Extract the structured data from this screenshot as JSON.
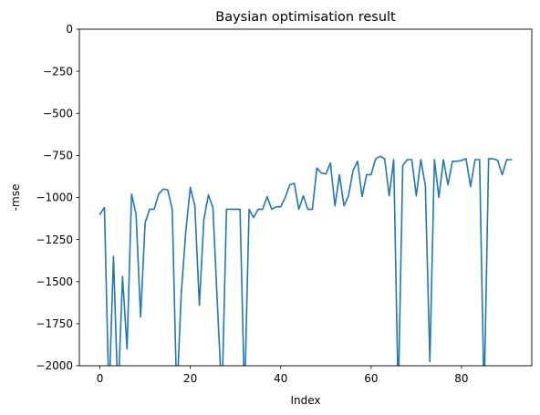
{
  "chart_data": {
    "type": "line",
    "title": "Baysian optimisation result",
    "xlabel": "Index",
    "ylabel": "-mse",
    "xlim": [
      -4.55,
      95.55
    ],
    "ylim": [
      -2000,
      0
    ],
    "xticks": [
      0,
      20,
      40,
      60,
      80
    ],
    "yticks": [
      0,
      -250,
      -500,
      -750,
      -1000,
      -1250,
      -1500,
      -1750,
      -2000
    ],
    "ytick_labels": [
      "0",
      "−250",
      "−500",
      "−750",
      "−1000",
      "−1250",
      "−1500",
      "−1750",
      "−2000"
    ],
    "grid": false,
    "line_color": "#1f77b4",
    "series": [
      {
        "x": [
          0,
          1,
          2,
          3,
          4,
          5,
          6,
          7,
          8,
          9,
          10,
          11,
          12,
          13,
          14,
          15,
          16,
          17,
          18,
          19,
          20,
          21,
          22,
          23,
          24,
          25,
          26,
          27,
          28,
          29,
          30,
          31,
          32,
          33,
          34,
          35,
          36,
          37,
          38,
          39,
          40,
          41,
          42,
          43,
          44,
          45,
          46,
          47,
          48,
          49,
          50,
          51,
          52,
          53,
          54,
          55,
          56,
          57,
          58,
          59,
          60,
          61,
          62,
          63,
          64,
          65,
          66,
          67,
          68,
          69,
          70,
          71,
          72,
          73,
          74,
          75,
          76,
          77,
          78,
          79,
          80,
          81,
          82,
          83,
          84,
          85,
          86,
          87,
          88,
          89,
          90,
          91
        ],
        "values": [
          -1100,
          -1060,
          -2200,
          -1350,
          -2200,
          -1470,
          -1900,
          -980,
          -1100,
          -1710,
          -1150,
          -1070,
          -1070,
          -980,
          -950,
          -955,
          -1070,
          -2200,
          -1570,
          -1200,
          -940,
          -1050,
          -1640,
          -1130,
          -985,
          -1060,
          -1640,
          -2200,
          -1070,
          -1070,
          -1070,
          -1070,
          -2200,
          -1070,
          -1120,
          -1070,
          -1070,
          -995,
          -1070,
          -1055,
          -1055,
          -1000,
          -925,
          -915,
          -1070,
          -990,
          -1070,
          -1070,
          -825,
          -855,
          -860,
          -795,
          -1050,
          -865,
          -1050,
          -990,
          -840,
          -785,
          -995,
          -865,
          -865,
          -770,
          -755,
          -770,
          -990,
          -775,
          -2200,
          -810,
          -775,
          -775,
          -990,
          -775,
          -930,
          -1975,
          -775,
          -1000,
          -775,
          -925,
          -785,
          -785,
          -780,
          -770,
          -935,
          -775,
          -775,
          -2200,
          -770,
          -770,
          -780,
          -865,
          -775,
          -775
        ]
      }
    ]
  }
}
